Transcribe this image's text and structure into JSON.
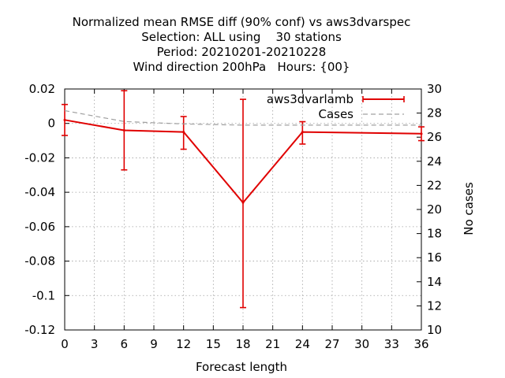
{
  "chart_data": {
    "type": "line",
    "title_lines": [
      "Normalized mean RMSE diff (90% conf) vs aws3dvarspec",
      "Selection: ALL using    30 stations",
      "Period: 20210201-20210228",
      "Wind direction 200hPa   Hours: {00}"
    ],
    "xlabel": "Forecast length",
    "ylabel": "",
    "y2label": "No cases",
    "xlim": [
      0,
      36
    ],
    "ylim": [
      -0.12,
      0.02
    ],
    "y2lim": [
      10,
      30
    ],
    "x_ticks": [
      "0",
      "3",
      "6",
      "9",
      "12",
      "15",
      "18",
      "21",
      "24",
      "27",
      "30",
      "33",
      "36"
    ],
    "y_ticks": [
      "0.02",
      "0",
      "-0.02",
      "-0.04",
      "-0.06",
      "-0.08",
      "-0.1",
      "-0.12"
    ],
    "y2_ticks": [
      "30",
      "28",
      "26",
      "24",
      "22",
      "20",
      "18",
      "16",
      "14",
      "12",
      "10"
    ],
    "grid": true,
    "legend_position": "top-right",
    "series": [
      {
        "name": "aws3dvarlamb",
        "axis": "y",
        "color": "#e00000",
        "style": "line-errorbars",
        "x": [
          0,
          6,
          12,
          18,
          24,
          36
        ],
        "values": [
          0.002,
          -0.004,
          -0.005,
          -0.046,
          -0.005,
          -0.006
        ],
        "err_low": [
          -0.007,
          -0.027,
          -0.015,
          -0.107,
          -0.012,
          -0.01
        ],
        "err_high": [
          0.011,
          0.019,
          0.004,
          0.014,
          0.001,
          -0.002
        ]
      },
      {
        "name": "Cases",
        "axis": "y2",
        "color": "#a0a0a0",
        "style": "dashed",
        "x": [
          0,
          6,
          12,
          18,
          24,
          36
        ],
        "values": [
          28.2,
          27.3,
          27.1,
          27.0,
          27.0,
          27.0
        ]
      }
    ]
  }
}
